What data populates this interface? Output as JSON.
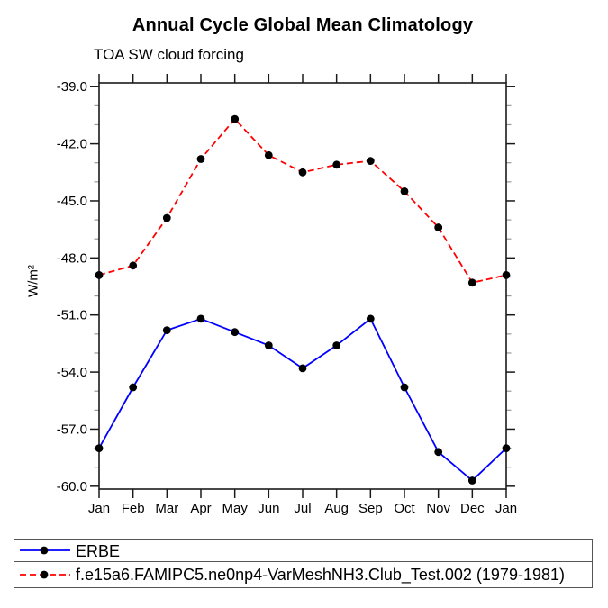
{
  "chart_data": {
    "type": "line",
    "title": "Annual Cycle Global Mean Climatology",
    "subtitle": "TOA SW cloud forcing",
    "ylabel": "W/m²",
    "xlabel": "",
    "categories": [
      "Jan",
      "Feb",
      "Mar",
      "Apr",
      "May",
      "Jun",
      "Jul",
      "Aug",
      "Sep",
      "Oct",
      "Nov",
      "Dec",
      "Jan"
    ],
    "ylim": [
      -60.15,
      -38.8
    ],
    "y_major_ticks": [
      -39,
      -42,
      -45,
      -48,
      -51,
      -54,
      -57,
      -60
    ],
    "y_tick_labels": [
      "-39.0",
      "-42.0",
      "-45.0",
      "-48.0",
      "-51.0",
      "-54.0",
      "-57.0",
      "-60.0"
    ],
    "y_minor_step": 1.0,
    "grid": false,
    "legend_position": "bottom",
    "axis_color": "#1a1a1a",
    "minor_tick_color": "#999999",
    "marker": "filled-circle",
    "marker_color": "#000000",
    "series": [
      {
        "name": "ERBE",
        "color": "#0000ff",
        "line_style": "solid",
        "values": [
          -58.0,
          -54.8,
          -51.8,
          -51.2,
          -51.9,
          -52.6,
          -53.8,
          -52.6,
          -51.2,
          -54.8,
          -58.2,
          -59.7,
          -58.0
        ]
      },
      {
        "name": "f.e15a6.FAMIPC5.ne0np4-VarMeshNH3.Club_Test.002 (1979-1981)",
        "color": "#ff0000",
        "line_style": "dashed",
        "values": [
          -48.9,
          -48.4,
          -45.9,
          -42.8,
          -40.7,
          -42.6,
          -43.5,
          -43.1,
          -42.9,
          -44.5,
          -46.4,
          -49.3,
          -48.9
        ]
      }
    ]
  }
}
